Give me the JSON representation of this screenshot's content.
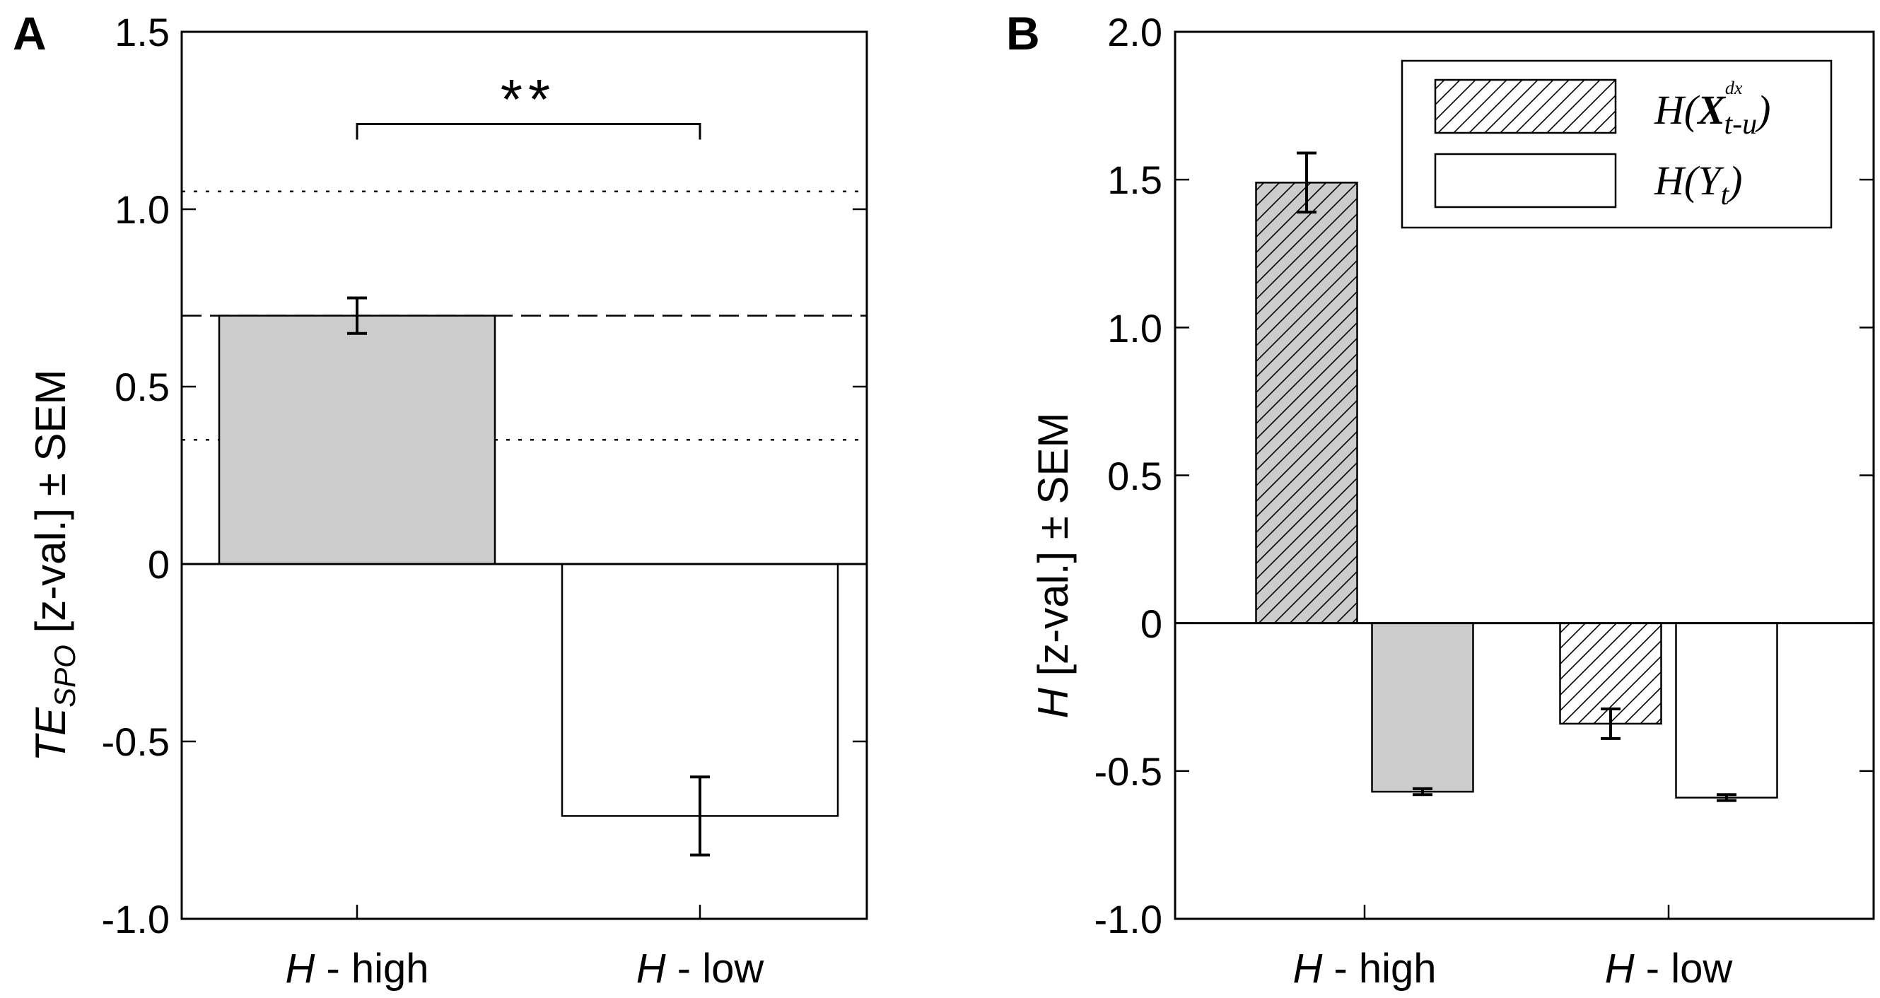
{
  "panels": [
    {
      "letter": "A",
      "ylabel_main": "TE",
      "ylabel_sub": "SPO",
      "ylabel_rest": " [z-val.] ± SEM",
      "significance": "**",
      "yticks": [
        "1.5",
        "1.0",
        "0.5",
        "0",
        "-0.5",
        "-1.0"
      ]
    },
    {
      "letter": "B",
      "ylabel_main": "H",
      "ylabel_rest": " [z-val.] ± SEM",
      "yticks": [
        "2.0",
        "1.5",
        "1.0",
        "0.5",
        "0",
        "-0.5",
        "-1.0"
      ],
      "legend": [
        {
          "main": "H(",
          "bold": "X",
          "sup": "dx",
          "sub": "t-u",
          "close": ")"
        },
        {
          "main": "H(Y",
          "sub": "t",
          "close": ")"
        }
      ]
    }
  ],
  "chart_data": [
    {
      "type": "bar",
      "panel": "A",
      "categories": [
        "H - high",
        "H - low"
      ],
      "category_italic": "H",
      "category_rest": [
        " - high",
        " - low"
      ],
      "values": [
        0.7,
        -0.71
      ],
      "errors": [
        0.05,
        0.11
      ],
      "fills": [
        "#cccccc",
        "#ffffff"
      ],
      "ylim": [
        -1.0,
        1.5
      ],
      "reference_lines": [
        {
          "value": 1.05,
          "style": "dotted"
        },
        {
          "value": 0.7,
          "style": "dashed"
        },
        {
          "value": 0.35,
          "style": "dotted"
        }
      ],
      "significance": {
        "between": [
          0,
          1
        ],
        "y": 1.24,
        "label": "**"
      },
      "ylabel": "TE_SPO [z-val.] ± SEM"
    },
    {
      "type": "bar",
      "panel": "B",
      "categories": [
        "H - high",
        "H - low"
      ],
      "category_italic": "H",
      "category_rest": [
        " - high",
        " - low"
      ],
      "series": [
        {
          "name": "H(X^dx_t-u)",
          "values": [
            1.49,
            -0.34
          ],
          "errors": [
            0.1,
            0.05
          ],
          "pattern": "hatch",
          "fills": [
            "#cccccc",
            "#ffffff"
          ]
        },
        {
          "name": "H(Y_t)",
          "values": [
            -0.57,
            -0.59
          ],
          "errors": [
            0.01,
            0.01
          ],
          "pattern": "solid",
          "fills": [
            "#cccccc",
            "#ffffff"
          ]
        }
      ],
      "ylim": [
        -1.0,
        2.0
      ],
      "ylabel": "H [z-val.] ± SEM"
    }
  ]
}
